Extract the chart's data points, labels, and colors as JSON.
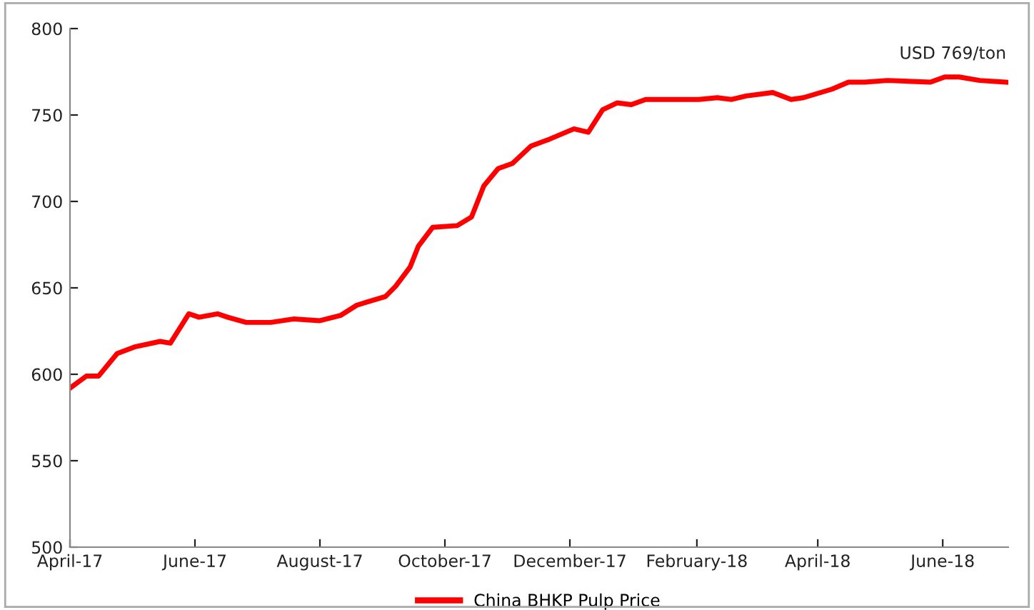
{
  "chart_data": {
    "type": "line",
    "x": [
      "2017-04-01",
      "2017-04-09",
      "2017-04-15",
      "2017-04-24",
      "2017-05-03",
      "2017-05-15",
      "2017-05-20",
      "2017-05-29",
      "2017-06-03",
      "2017-06-12",
      "2017-06-17",
      "2017-06-26",
      "2017-07-08",
      "2017-07-19",
      "2017-08-01",
      "2017-08-11",
      "2017-08-19",
      "2017-09-02",
      "2017-09-07",
      "2017-09-14",
      "2017-09-18",
      "2017-09-25",
      "2017-10-07",
      "2017-10-14",
      "2017-10-20",
      "2017-10-27",
      "2017-11-03",
      "2017-11-12",
      "2017-11-21",
      "2017-12-03",
      "2017-12-10",
      "2017-12-17",
      "2017-12-24",
      "2017-12-31",
      "2018-01-07",
      "2018-01-17",
      "2018-02-02",
      "2018-02-11",
      "2018-02-18",
      "2018-02-25",
      "2018-03-10",
      "2018-03-19",
      "2018-03-25",
      "2018-04-08",
      "2018-04-16",
      "2018-04-24",
      "2018-05-05",
      "2018-05-26",
      "2018-06-02",
      "2018-06-09",
      "2018-06-19",
      "2018-07-02"
    ],
    "series": [
      {
        "name": "China BHKP Pulp Price",
        "color": "#ff0000",
        "values": [
          592,
          599,
          599,
          612,
          616,
          619,
          618,
          635,
          633,
          635,
          633,
          630,
          630,
          632,
          631,
          634,
          640,
          645,
          651,
          662,
          674,
          685,
          686,
          691,
          709,
          719,
          722,
          732,
          736,
          742,
          740,
          753,
          757,
          756,
          759,
          759,
          759,
          760,
          759,
          761,
          763,
          759,
          760,
          765,
          769,
          769,
          770,
          769,
          772,
          772,
          770,
          769
        ]
      }
    ],
    "xlim": [
      "2017-04-01",
      "2018-07-03"
    ],
    "xticks": [
      {
        "value": "2017-04-01",
        "label": "April-17"
      },
      {
        "value": "2017-06-01",
        "label": "June-17"
      },
      {
        "value": "2017-08-01",
        "label": "August-17"
      },
      {
        "value": "2017-10-01",
        "label": "October-17"
      },
      {
        "value": "2017-12-01",
        "label": "December-17"
      },
      {
        "value": "2018-02-01",
        "label": "February-18"
      },
      {
        "value": "2018-04-01",
        "label": "April-18"
      },
      {
        "value": "2018-06-01",
        "label": "June-18"
      }
    ],
    "ylim": [
      500,
      800
    ],
    "yticks": [
      500,
      550,
      600,
      650,
      700,
      750,
      800
    ],
    "annotations": [
      {
        "text": "USD 769/ton",
        "x": "2018-07-02",
        "y": 769
      }
    ],
    "legend": "bottom",
    "grid": false,
    "marker": "none",
    "line_style": "solid"
  }
}
